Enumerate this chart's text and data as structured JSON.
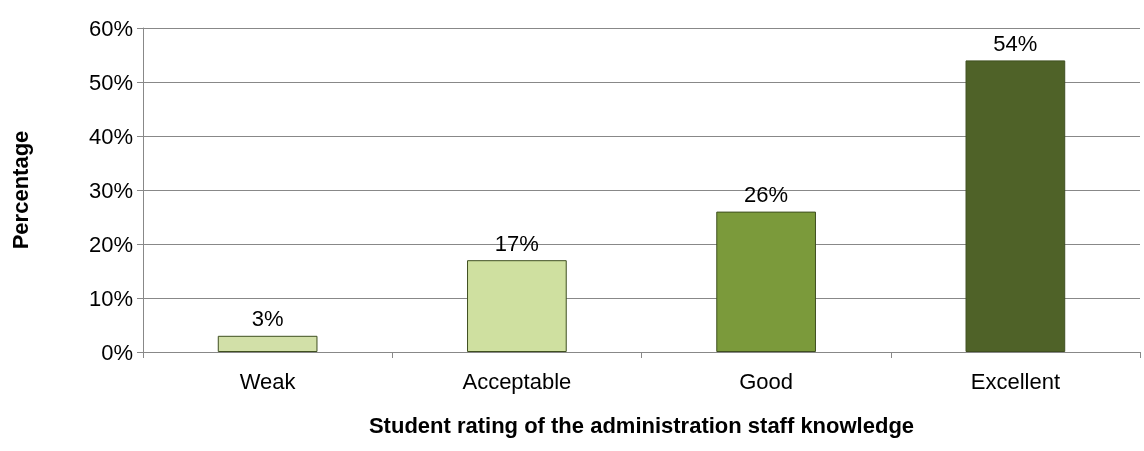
{
  "chart_data": {
    "type": "bar",
    "xlabel": "Student rating of the administration staff knowledge",
    "ylabel": "Percentage",
    "categories": [
      "Weak",
      "Acceptable",
      "Good",
      "Excellent"
    ],
    "values": [
      3,
      17,
      26,
      54
    ],
    "colors": [
      "#d2e0a8",
      "#cfe0a0",
      "#7b9a3b",
      "#4f6228"
    ],
    "value_labels": [
      "3%",
      "17%",
      "26%",
      "54%"
    ],
    "ylim": [
      0,
      60
    ],
    "yticks": [
      {
        "value": 0,
        "label": "0%"
      },
      {
        "value": 10,
        "label": "10%"
      },
      {
        "value": 20,
        "label": "20%"
      },
      {
        "value": 30,
        "label": "30%"
      },
      {
        "value": 40,
        "label": "40%"
      },
      {
        "value": 50,
        "label": "50%"
      },
      {
        "value": 60,
        "label": "60%"
      }
    ],
    "grid": "y"
  }
}
